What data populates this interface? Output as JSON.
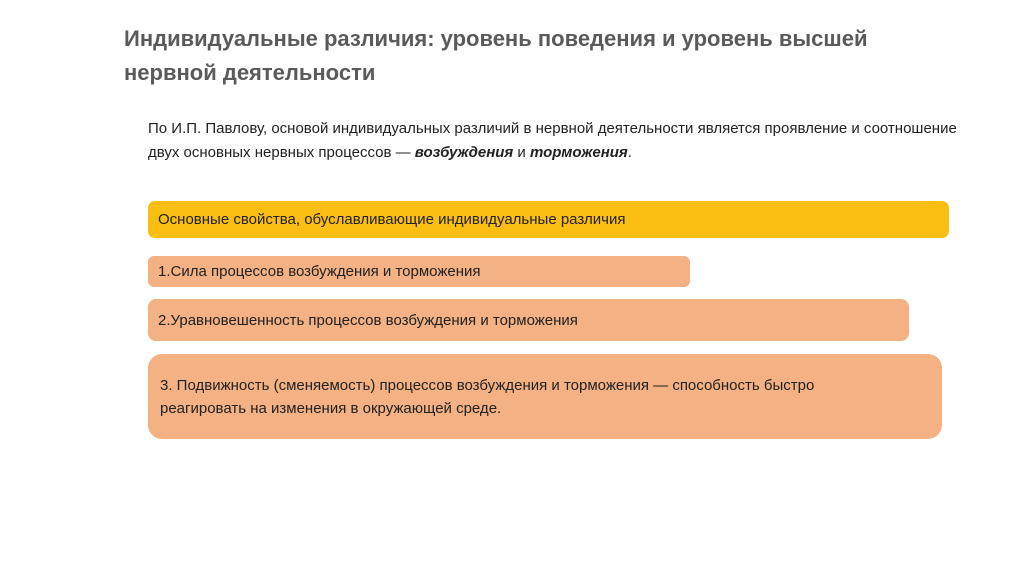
{
  "slide": {
    "title": "Индивидуальные различия: уровень поведения и уровень  высшей нервной деятельности",
    "intro": {
      "text_before": "По И.П. Павлову, основой индивидуальных различий в нервной деятельности является проявление и соотношение двух основных нервных процессов — ",
      "emphasis_1": "возбуждения",
      "connector": " и ",
      "emphasis_2": "торможения",
      "text_after": "."
    },
    "properties_header": "Основные свойства, обуславливающие индивидуальные различия",
    "properties": [
      "1.Сила процессов возбуждения и торможения",
      "2.Уравновешенность процессов возбуждения и торможения",
      "3. Подвижность (сменяемость) процессов возбуждения и торможения — способность быстро реагировать на изменения в окружающей среде."
    ]
  },
  "colors": {
    "header_box": "#fbbe12",
    "item_box": "#f4b183",
    "title_text": "#5a5a5a"
  }
}
